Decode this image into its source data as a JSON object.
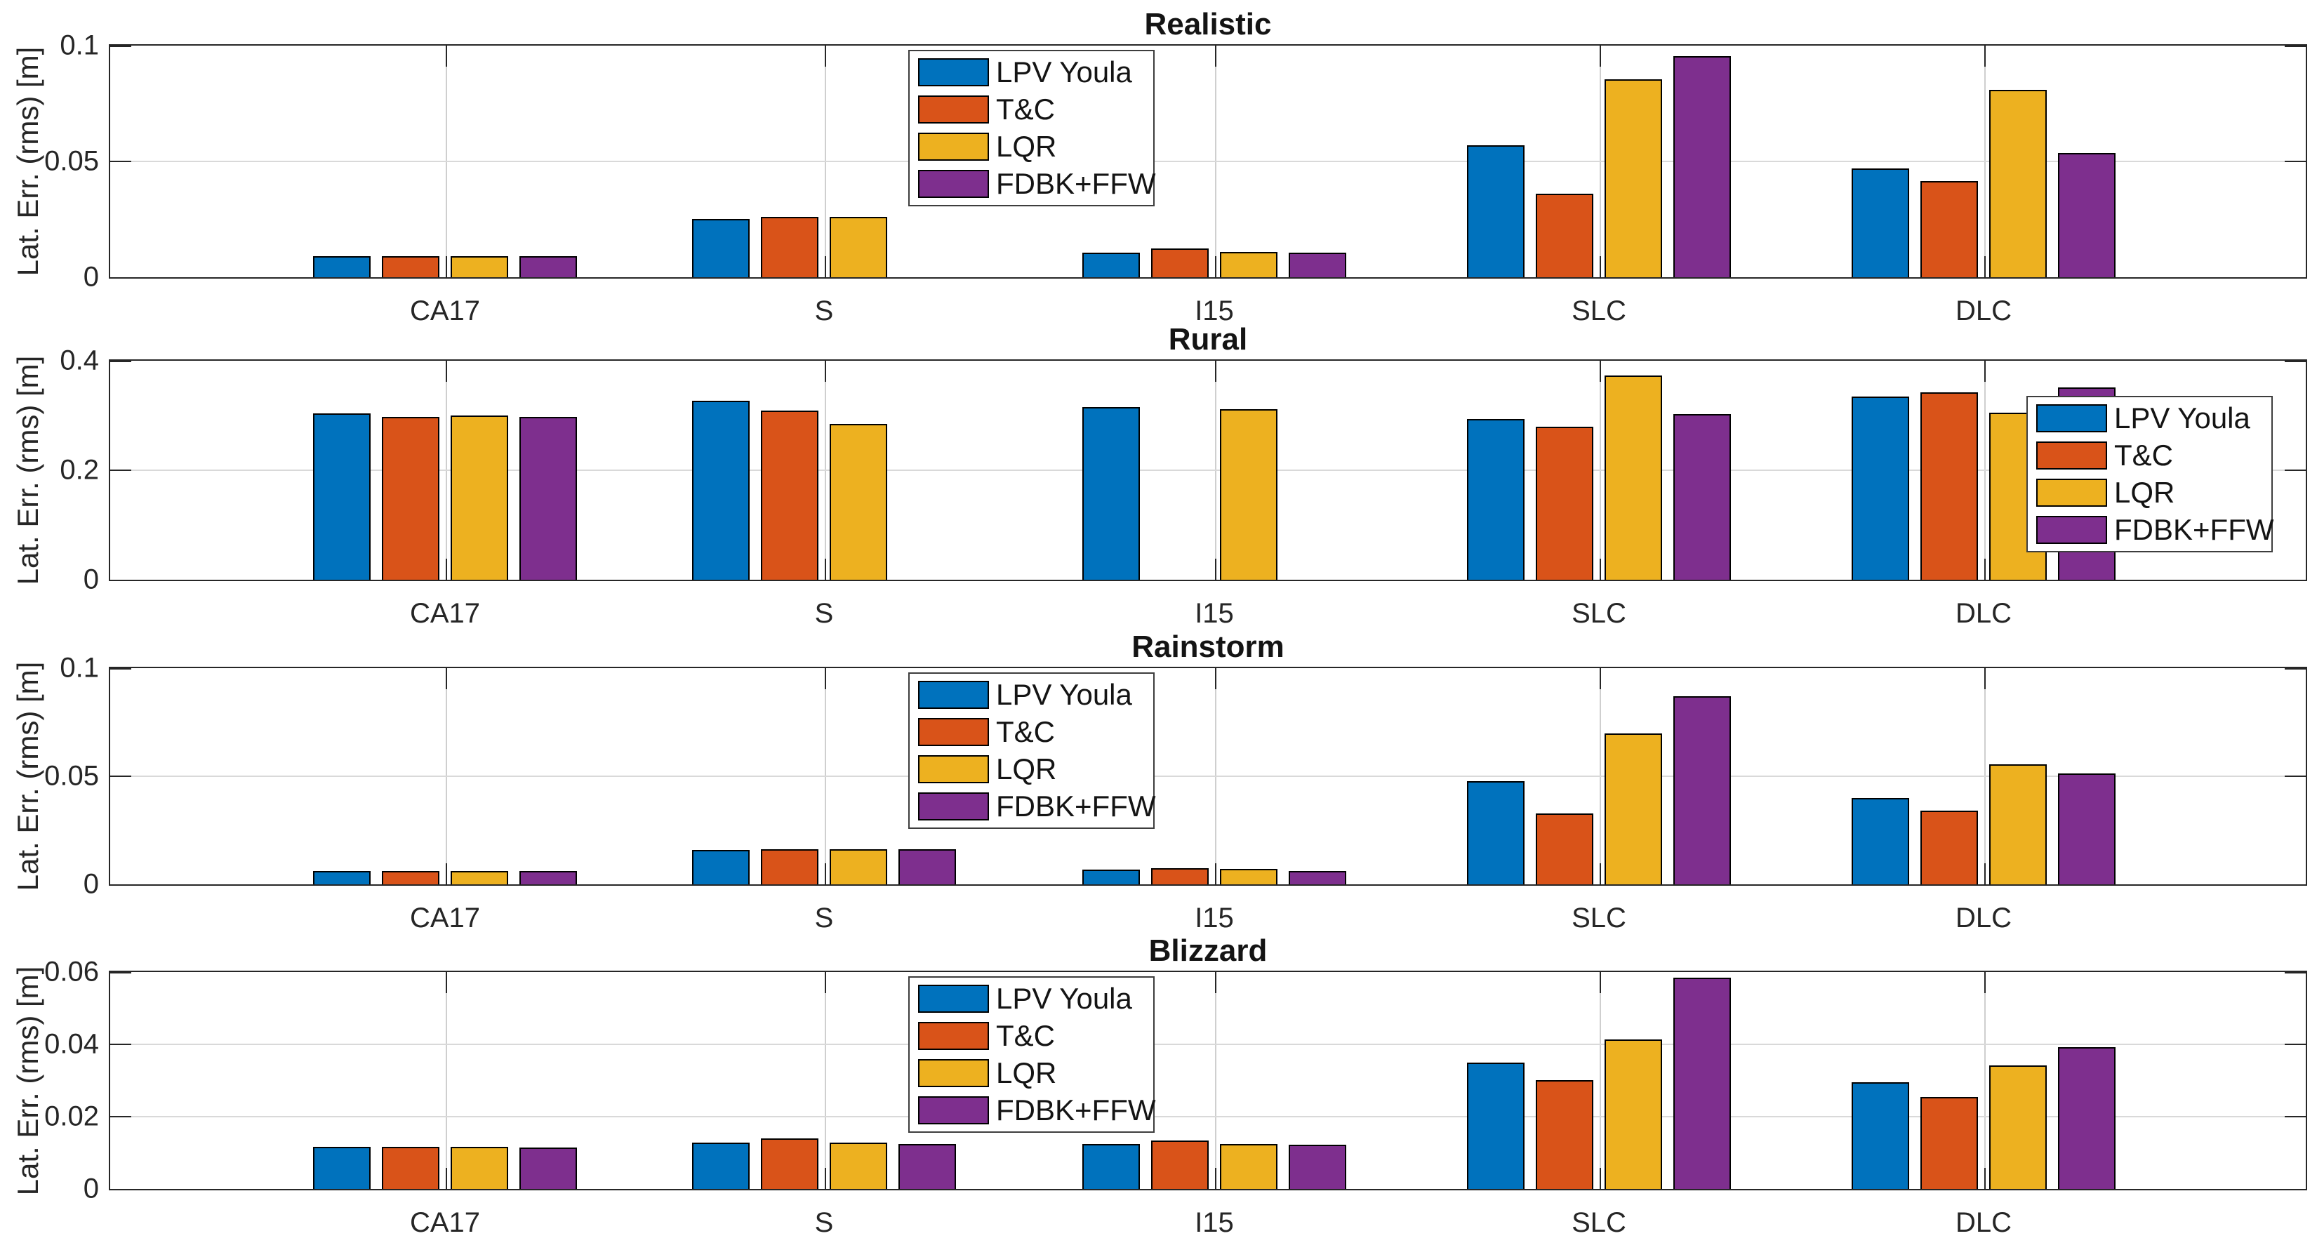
{
  "figure": {
    "background": "#ffffff",
    "ylabel": "Lat. Err. (rms) [m]"
  },
  "style": {
    "frame_color": "#262626",
    "grid_x_color": "#cfcfcf",
    "grid_y_color": "#d9d9d9",
    "tick_color": "#262626",
    "bar_edge_color": "#000000",
    "text_color": "#262626",
    "legend_border_color": "#3d3d3d",
    "series_palette": [
      "#0072BD",
      "#D95319",
      "#EDB120",
      "#7E2F8E"
    ]
  },
  "chart_data": [
    {
      "type": "bar",
      "title": "Realistic",
      "ylabel": "Lat. Err. (rms) [m]",
      "categories": [
        "CA17",
        "S",
        "I15",
        "SLC",
        "DLC"
      ],
      "ylim": [
        0,
        0.1
      ],
      "ytick_values": [
        0,
        0.05,
        0.1
      ],
      "ytick_labels": [
        "0",
        "0.05",
        "0.1"
      ],
      "grid": true,
      "legend_position": "inside-top-center-right",
      "series": [
        {
          "name": "LPV Youla",
          "color": "#0072BD",
          "values": [
            0.009,
            0.025,
            0.0105,
            0.057,
            0.047
          ]
        },
        {
          "name": "T&C",
          "color": "#D95319",
          "values": [
            0.009,
            0.026,
            0.0125,
            0.036,
            0.0415
          ]
        },
        {
          "name": "LQR",
          "color": "#EDB120",
          "values": [
            0.009,
            0.026,
            0.011,
            0.0855,
            0.081
          ]
        },
        {
          "name": "FDBK+FFW",
          "color": "#7E2F8E",
          "values": [
            0.009,
            null,
            0.0105,
            0.0955,
            0.0535
          ]
        }
      ]
    },
    {
      "type": "bar",
      "title": "Rural",
      "ylabel": "Lat. Err. (rms) [m]",
      "categories": [
        "CA17",
        "S",
        "I15",
        "SLC",
        "DLC"
      ],
      "ylim": [
        0,
        0.4
      ],
      "ytick_values": [
        0,
        0.2,
        0.4
      ],
      "ytick_labels": [
        "0",
        "0.2",
        "0.4"
      ],
      "grid": true,
      "legend_position": "inside-right",
      "series": [
        {
          "name": "LPV Youla",
          "color": "#0072BD",
          "values": [
            0.304,
            0.327,
            0.316,
            0.294,
            0.335
          ]
        },
        {
          "name": "T&C",
          "color": "#D95319",
          "values": [
            0.297,
            0.309,
            null,
            0.28,
            0.342
          ]
        },
        {
          "name": "LQR",
          "color": "#EDB120",
          "values": [
            0.3,
            0.284,
            0.312,
            0.373,
            0.305
          ]
        },
        {
          "name": "FDBK+FFW",
          "color": "#7E2F8E",
          "values": [
            0.297,
            null,
            null,
            0.303,
            0.351
          ]
        }
      ]
    },
    {
      "type": "bar",
      "title": "Rainstorm",
      "ylabel": "Lat. Err. (rms) [m]",
      "categories": [
        "CA17",
        "S",
        "I15",
        "SLC",
        "DLC"
      ],
      "ylim": [
        0,
        0.1
      ],
      "ytick_values": [
        0,
        0.05,
        0.1
      ],
      "ytick_labels": [
        "0",
        "0.05",
        "0.1"
      ],
      "grid": true,
      "legend_position": "inside-top-center-right",
      "series": [
        {
          "name": "LPV Youla",
          "color": "#0072BD",
          "values": [
            0.0062,
            0.016,
            0.0068,
            0.0478,
            0.0398
          ]
        },
        {
          "name": "T&C",
          "color": "#D95319",
          "values": [
            0.0062,
            0.0163,
            0.0074,
            0.0327,
            0.034
          ]
        },
        {
          "name": "LQR",
          "color": "#EDB120",
          "values": [
            0.0062,
            0.0162,
            0.007,
            0.0699,
            0.0554
          ]
        },
        {
          "name": "FDBK+FFW",
          "color": "#7E2F8E",
          "values": [
            0.0062,
            0.0162,
            0.0063,
            0.087,
            0.0514
          ]
        }
      ]
    },
    {
      "type": "bar",
      "title": "Blizzard",
      "ylabel": "Lat. Err. (rms) [m]",
      "categories": [
        "CA17",
        "S",
        "I15",
        "SLC",
        "DLC"
      ],
      "ylim": [
        0,
        0.06
      ],
      "ytick_values": [
        0,
        0.02,
        0.04,
        0.06
      ],
      "ytick_labels": [
        "0",
        "0.02",
        "0.04",
        "0.06"
      ],
      "grid": true,
      "legend_position": "inside-top-center-right",
      "series": [
        {
          "name": "LPV Youla",
          "color": "#0072BD",
          "values": [
            0.0117,
            0.0128,
            0.0125,
            0.035,
            0.0296
          ]
        },
        {
          "name": "T&C",
          "color": "#D95319",
          "values": [
            0.0117,
            0.0139,
            0.0134,
            0.0301,
            0.0254
          ]
        },
        {
          "name": "LQR",
          "color": "#EDB120",
          "values": [
            0.0116,
            0.0129,
            0.0125,
            0.0414,
            0.0342
          ]
        },
        {
          "name": "FDBK+FFW",
          "color": "#7E2F8E",
          "values": [
            0.0114,
            0.0125,
            0.0122,
            0.0585,
            0.0392
          ]
        }
      ]
    }
  ]
}
